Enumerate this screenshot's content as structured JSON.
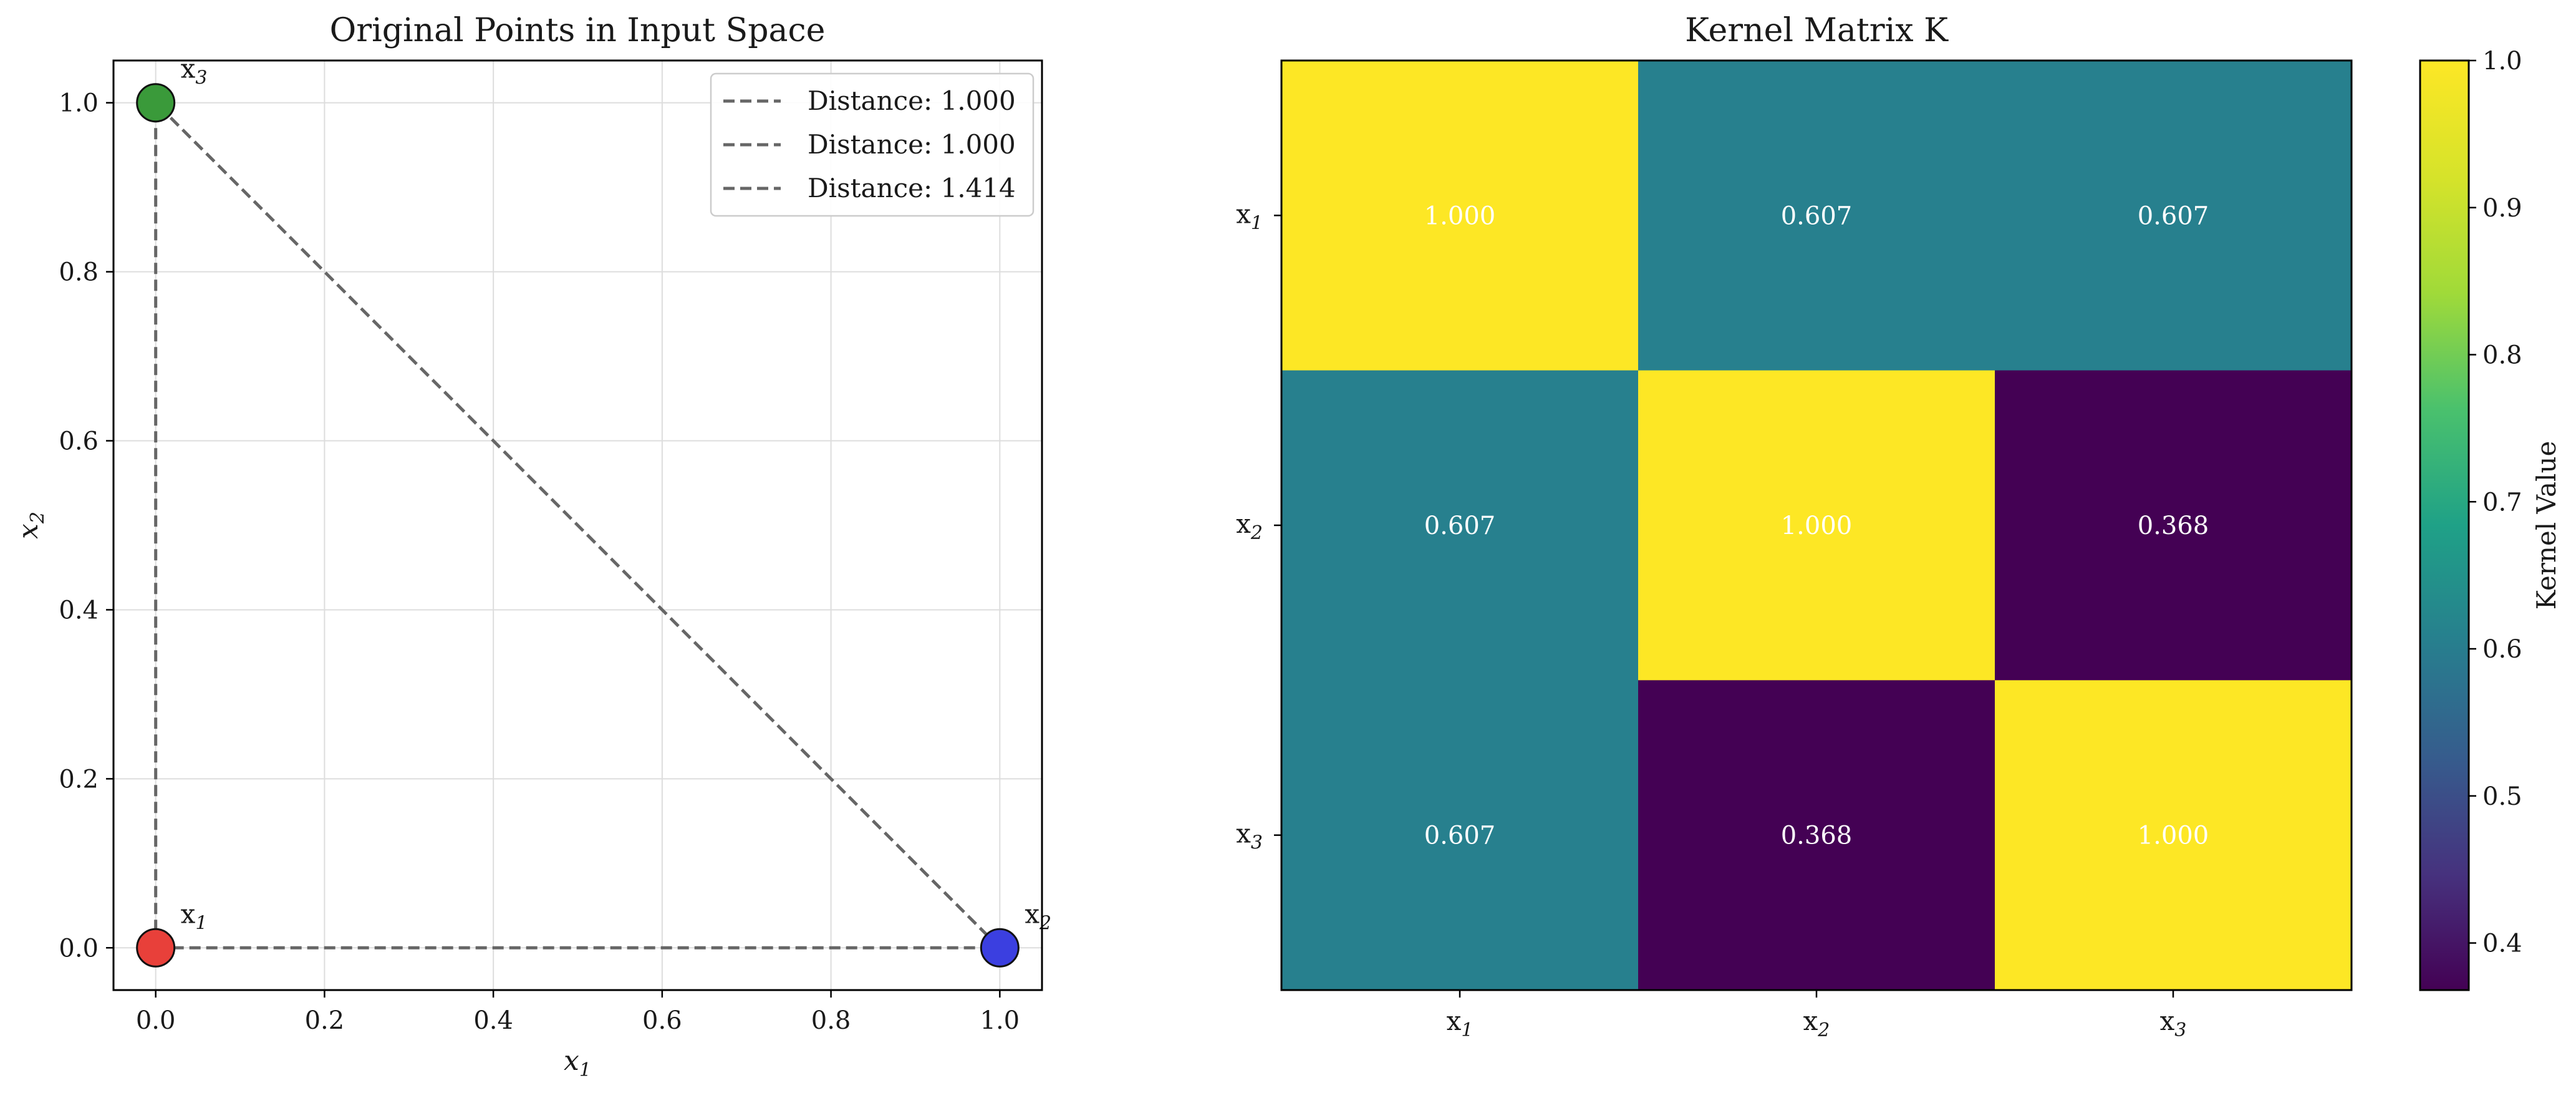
{
  "chart_data": [
    {
      "type": "scatter",
      "title": "Original Points in Input Space",
      "xlabel": "x1",
      "ylabel": "x2",
      "xlim": [
        -0.05,
        1.05
      ],
      "ylim": [
        -0.05,
        1.05
      ],
      "grid": true,
      "xticks": [
        "0.0",
        "0.2",
        "0.4",
        "0.6",
        "0.8",
        "1.0"
      ],
      "yticks": [
        "0.0",
        "0.2",
        "0.4",
        "0.6",
        "0.8",
        "1.0"
      ],
      "points": [
        {
          "label": "x1",
          "x": 0.0,
          "y": 0.0,
          "color": "#e8403a"
        },
        {
          "label": "x2",
          "x": 1.0,
          "y": 0.0,
          "color": "#3b3fe0"
        },
        {
          "label": "x3",
          "x": 0.0,
          "y": 1.0,
          "color": "#3a9a3a"
        }
      ],
      "lines": [
        {
          "name": "Distance: 1.000",
          "from": [
            0.0,
            0.0
          ],
          "to": [
            1.0,
            0.0
          ]
        },
        {
          "name": "Distance: 1.000",
          "from": [
            0.0,
            0.0
          ],
          "to": [
            0.0,
            1.0
          ]
        },
        {
          "name": "Distance: 1.414",
          "from": [
            1.0,
            0.0
          ],
          "to": [
            0.0,
            1.0
          ]
        }
      ],
      "legend_position": "upper right",
      "line_color": "#666666"
    },
    {
      "type": "heatmap",
      "title": "Kernel Matrix K",
      "row_labels": [
        "x1",
        "x2",
        "x3"
      ],
      "col_labels": [
        "x1",
        "x2",
        "x3"
      ],
      "values": [
        [
          1.0,
          0.607,
          0.607
        ],
        [
          0.607,
          1.0,
          0.368
        ],
        [
          0.607,
          0.368,
          1.0
        ]
      ],
      "value_labels": [
        [
          "1.000",
          "0.607",
          "0.607"
        ],
        [
          "0.607",
          "1.000",
          "0.368"
        ],
        [
          "0.607",
          "0.368",
          "1.000"
        ]
      ],
      "colorbar": {
        "label": "Kernel Value",
        "colormap": "viridis",
        "range": [
          0.368,
          1.0
        ],
        "ticks": [
          "0.4",
          "0.5",
          "0.6",
          "0.7",
          "0.8",
          "0.9",
          "1.0"
        ]
      }
    }
  ]
}
